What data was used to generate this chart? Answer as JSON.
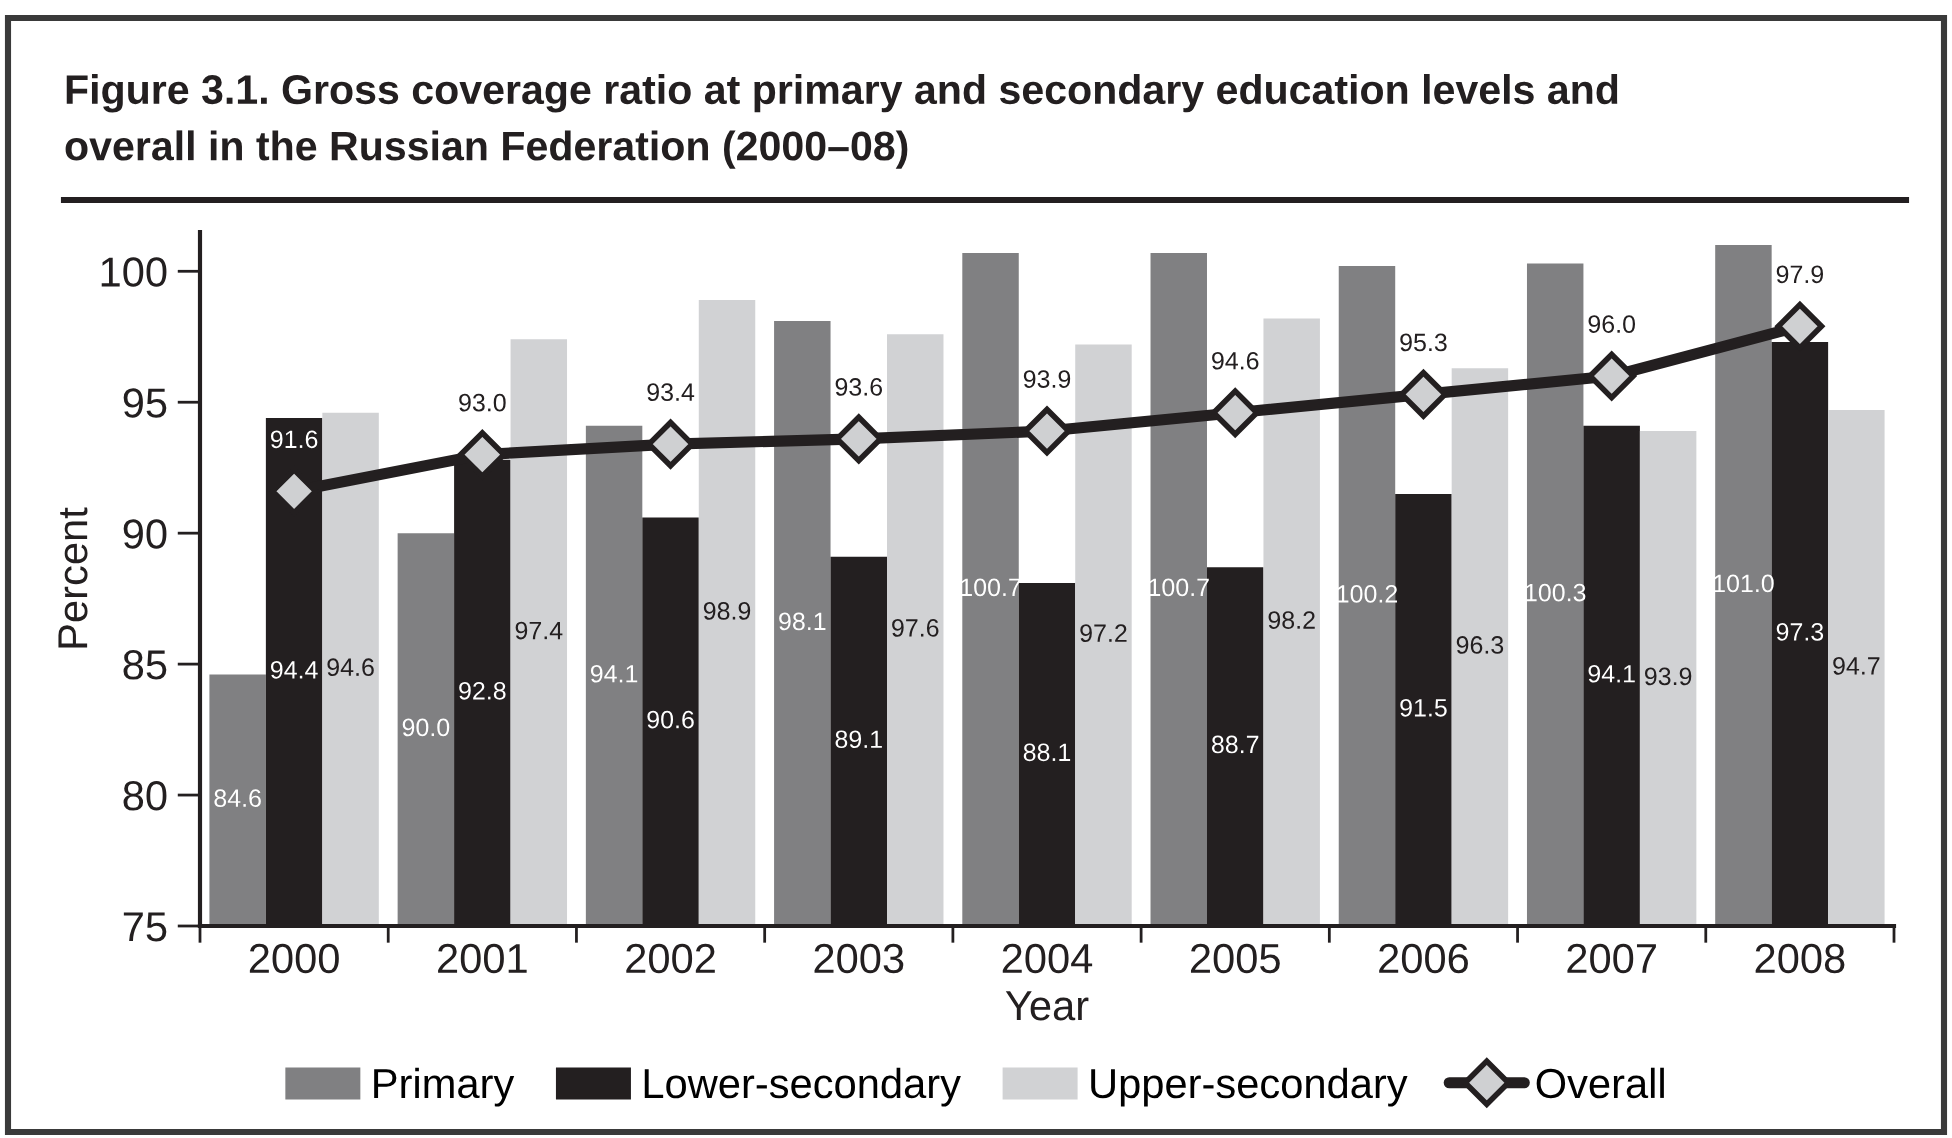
{
  "chart_data": {
    "type": "bar",
    "title": "Figure 3.1. Gross coverage ratio at primary and secondary education levels and\noverall in the Russian Federation (2000–08)",
    "xlabel": "Year",
    "ylabel": "Percent",
    "categories": [
      "2000",
      "2001",
      "2002",
      "2003",
      "2004",
      "2005",
      "2006",
      "2007",
      "2008"
    ],
    "series": [
      {
        "name": "Primary",
        "color": "#808082",
        "values": [
          84.6,
          90.0,
          94.1,
          98.1,
          100.7,
          100.7,
          100.2,
          100.3,
          101.0
        ],
        "value_labels": [
          "84.6",
          "90.0",
          "94.1",
          "98.1",
          "100.7",
          "100.7",
          "100.2",
          "100.3",
          "101.0"
        ]
      },
      {
        "name": "Lower-secondary",
        "color": "#231f20",
        "values": [
          94.4,
          92.8,
          90.6,
          89.1,
          88.1,
          88.7,
          91.5,
          94.1,
          97.3
        ],
        "value_labels": [
          "94.4",
          "92.8",
          "90.6",
          "89.1",
          "88.1",
          "88.7",
          "91.5",
          "94.1",
          "97.3"
        ]
      },
      {
        "name": "Upper-secondary",
        "color": "#d1d2d4",
        "values": [
          94.6,
          97.4,
          98.9,
          97.6,
          97.2,
          98.2,
          96.3,
          93.9,
          94.7
        ],
        "value_labels": [
          "94.6",
          "97.4",
          "98.9",
          "97.6",
          "97.2",
          "98.2",
          "96.3",
          "93.9",
          "94.7"
        ]
      },
      {
        "name": "Overall",
        "type": "line",
        "color": "#231f20",
        "marker": "diamond",
        "values": [
          91.6,
          93.0,
          93.4,
          93.6,
          93.9,
          94.6,
          95.3,
          96.0,
          97.9
        ],
        "value_labels": [
          "91.6",
          "93.0",
          "93.4",
          "93.6",
          "93.9",
          "94.6",
          "95.3",
          "96.0",
          "97.9"
        ]
      }
    ],
    "ylim": [
      75,
      101.5
    ],
    "yticks": [
      75,
      80,
      85,
      90,
      95,
      100
    ],
    "legend": "bottom"
  }
}
